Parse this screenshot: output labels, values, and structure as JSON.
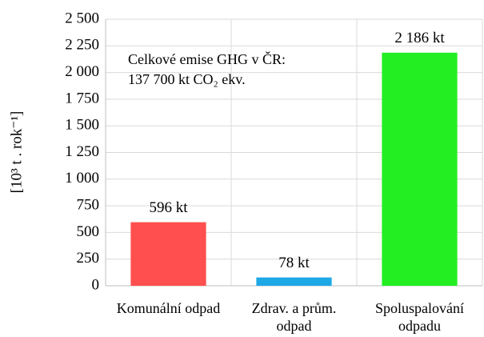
{
  "chart_data": {
    "type": "bar",
    "ylabel": "[10³ t . rok⁻¹]",
    "annotation": [
      "Celkové emise GHG v ČR:",
      "137 700 kt CO₂ ekv."
    ],
    "categories": [
      "Komunální odpad",
      "Zdrav. a prům. odpad",
      "Spoluspalování odpadu"
    ],
    "values": [
      596,
      78,
      2186
    ],
    "value_labels": [
      "596 kt",
      "78 kt",
      "2 186 kt"
    ],
    "colors": [
      "#ff4f4f",
      "#1fa8e6",
      "#22ee22"
    ],
    "ylim": [
      0,
      2500
    ],
    "yticks": [
      0,
      250,
      500,
      750,
      {
        "value": 1000,
        "label": "1 000"
      },
      {
        "value": 1250,
        "label": "1 250"
      },
      {
        "value": 1500,
        "label": "1 500"
      },
      {
        "value": 1750,
        "label": "1 750"
      },
      {
        "value": 2000,
        "label": "2 000"
      },
      {
        "value": 2250,
        "label": "2 250"
      },
      {
        "value": 2500,
        "label": "2 500"
      }
    ],
    "grid": true
  }
}
